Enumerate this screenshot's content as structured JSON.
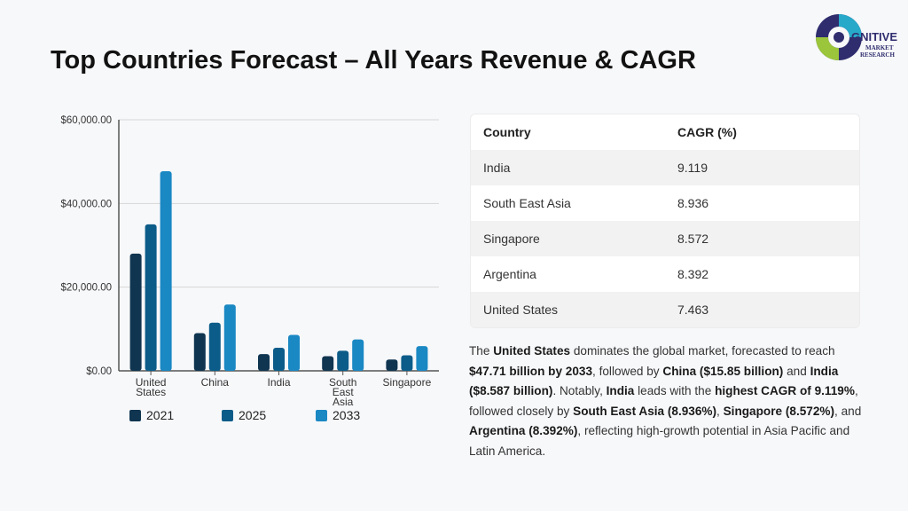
{
  "page": {
    "title": "Top Countries Forecast – All Years Revenue & CAGR"
  },
  "logo": {
    "word": "GNITIVE",
    "line1": "MARKET",
    "line2": "RESEARCH"
  },
  "colors": {
    "s2021": "#0f3550",
    "s2025": "#0c5c89",
    "s2033": "#1a88c3",
    "axis": "#555555",
    "grid": "#d6d6d6"
  },
  "chart_data": {
    "type": "bar",
    "categories": [
      [
        "United",
        "States"
      ],
      [
        "China"
      ],
      [
        "India"
      ],
      [
        "South",
        "East",
        "Asia"
      ],
      [
        "Singapore"
      ]
    ],
    "series": [
      {
        "name": "2021",
        "values": [
          28000,
          9000,
          4000,
          3500,
          2700
        ]
      },
      {
        "name": "2025",
        "values": [
          35000,
          11500,
          5500,
          4800,
          3700
        ]
      },
      {
        "name": "2033",
        "values": [
          47710,
          15850,
          8587,
          7500,
          5900
        ]
      }
    ],
    "yticks": [
      "$0.00",
      "$20,000.00",
      "$40,000.00",
      "$60,000.00"
    ],
    "ylim": [
      0,
      60000
    ],
    "grid": true,
    "legend": "bottom"
  },
  "table": {
    "headers": [
      "Country",
      "CAGR (%)"
    ],
    "rows": [
      [
        "India",
        "9.119"
      ],
      [
        "South East Asia",
        "8.936"
      ],
      [
        "Singapore",
        "8.572"
      ],
      [
        "Argentina",
        "8.392"
      ],
      [
        "United States",
        "7.463"
      ]
    ]
  },
  "description": {
    "p1": "The ",
    "b1": "United States",
    "p2": " dominates the global market, forecasted to reach ",
    "b2": "$47.71 billion by 2033",
    "p3": ", followed by ",
    "b3": "China ($15.85 billion)",
    "p4": " and ",
    "b4": "India ($8.587 billion)",
    "p5": ". Notably, ",
    "b5": "India",
    "p6": " leads with the ",
    "b6": "highest CAGR of 9.119%",
    "p7": ", followed closely by ",
    "b7": "South East Asia (8.936%)",
    "p8": ", ",
    "b8": "Singapore (8.572%)",
    "p9": ", and ",
    "b9": "Argentina (8.392%)",
    "p10": ", reflecting high-growth potential in Asia Pacific and Latin America."
  }
}
